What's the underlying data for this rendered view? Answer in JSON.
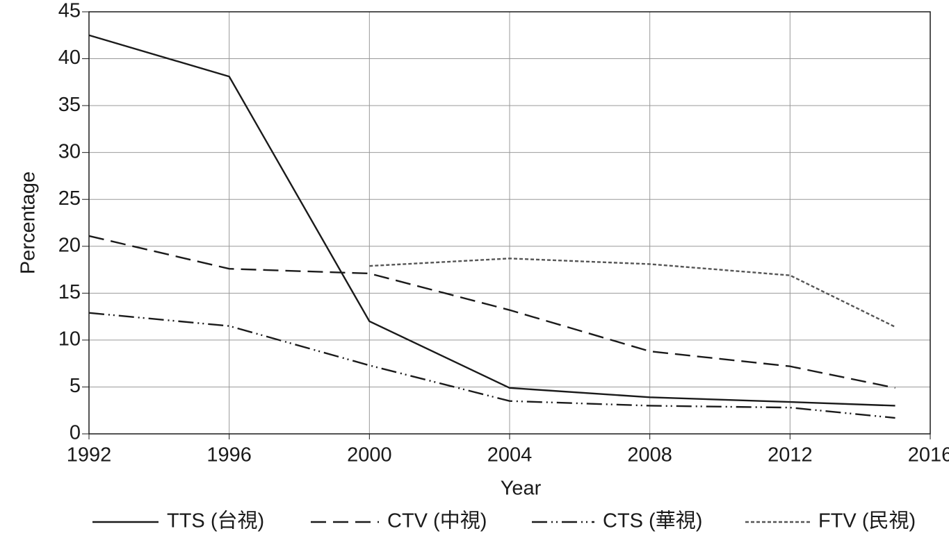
{
  "chart_data": {
    "type": "line",
    "x_label": "Year",
    "y_label": "Percentage",
    "x": [
      1992,
      1996,
      2000,
      2004,
      2008,
      2012,
      2015
    ],
    "series": [
      {
        "name": "TTS (台視)",
        "color": "#1a1a1a",
        "dash": "none",
        "values": [
          42.5,
          38.1,
          12.0,
          4.9,
          3.9,
          3.4,
          3.0
        ]
      },
      {
        "name": "CTV (中視)",
        "color": "#1a1a1a",
        "dash": "22,10",
        "values": [
          21.1,
          17.6,
          17.1,
          13.2,
          8.8,
          7.2,
          4.9
        ]
      },
      {
        "name": "CTS (華視)",
        "color": "#1a1a1a",
        "dash": "22,6,2,5,2,6",
        "values": [
          12.9,
          11.5,
          7.3,
          3.5,
          3.0,
          2.8,
          1.7
        ]
      },
      {
        "name": "FTV (民視)",
        "color": "#555555",
        "dash": "5,3",
        "values": [
          null,
          null,
          17.9,
          18.7,
          18.1,
          16.9,
          11.4
        ]
      }
    ],
    "xlim": [
      1992,
      2016
    ],
    "xticks": [
      1992,
      1996,
      2000,
      2004,
      2008,
      2012,
      2016
    ],
    "ylim": [
      0,
      45
    ],
    "yticks": [
      0,
      5,
      10,
      15,
      20,
      25,
      30,
      35,
      40,
      45
    ],
    "grid": true,
    "legend": "bottom"
  }
}
